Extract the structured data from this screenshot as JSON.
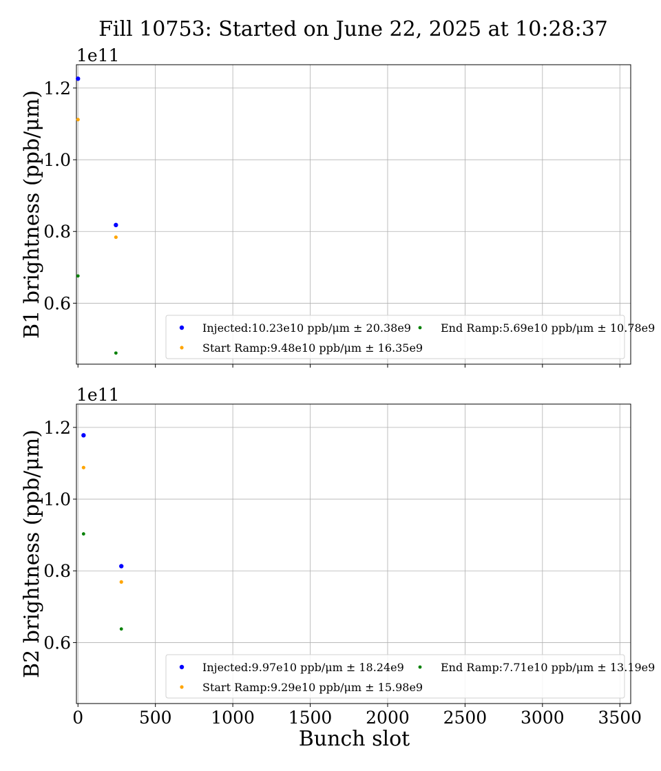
{
  "figure": {
    "title": "Fill 10753: Started on June 22, 2025 at 10:28:37"
  },
  "chart_data": [
    {
      "type": "scatter",
      "ylabel": "B1 brightness (ppb/μm)",
      "y_offset_label": "1e11",
      "xlim": [
        -10,
        3570
      ],
      "ylim": [
        0.43,
        1.265
      ],
      "y_scale": 100000000000.0,
      "grid": true,
      "legend_position": "lower-right",
      "x_ticks": [
        0,
        500,
        1000,
        1500,
        2000,
        2500,
        3000,
        3500
      ],
      "y_ticks": [
        0.6,
        0.8,
        1.0,
        1.2
      ],
      "y_tick_labels": [
        "0.6",
        "0.8",
        "1.0",
        "1.2"
      ],
      "series": [
        {
          "name": "Injected:10.23e10 ppb/μm ± 20.38e9",
          "color": "#0000ff",
          "marker_radius": 3.2,
          "points": [
            [
              0,
              1.226
            ],
            [
              245,
              0.818
            ]
          ]
        },
        {
          "name": "Start Ramp:9.48e10 ppb/μm ± 16.35e9",
          "color": "#ffa500",
          "marker_radius": 2.6,
          "points": [
            [
              0,
              1.112
            ],
            [
              245,
              0.784
            ]
          ]
        },
        {
          "name": "End Ramp:5.69e10 ppb/μm ± 10.78e9",
          "color": "#008000",
          "marker_radius": 2.4,
          "points": [
            [
              0,
              0.676
            ],
            [
              245,
              0.461
            ]
          ]
        }
      ]
    },
    {
      "type": "scatter",
      "xlabel": "Bunch slot",
      "ylabel": "B2 brightness (ppb/μm)",
      "y_offset_label": "1e11",
      "xlim": [
        -10,
        3570
      ],
      "ylim": [
        0.43,
        1.265
      ],
      "y_scale": 100000000000.0,
      "grid": true,
      "legend_position": "lower-right",
      "x_ticks": [
        0,
        500,
        1000,
        1500,
        2000,
        2500,
        3000,
        3500
      ],
      "x_tick_labels": [
        "0",
        "500",
        "1000",
        "1500",
        "2000",
        "2500",
        "3000",
        "3500"
      ],
      "y_ticks": [
        0.6,
        0.8,
        1.0,
        1.2
      ],
      "y_tick_labels": [
        "0.6",
        "0.8",
        "1.0",
        "1.2"
      ],
      "series": [
        {
          "name": "Injected:9.97e10 ppb/μm ± 18.24e9",
          "color": "#0000ff",
          "marker_radius": 3.2,
          "points": [
            [
              36,
              1.178
            ],
            [
              280,
              0.813
            ]
          ]
        },
        {
          "name": "Start Ramp:9.29e10 ppb/μm ± 15.98e9",
          "color": "#ffa500",
          "marker_radius": 2.6,
          "points": [
            [
              36,
              1.088
            ],
            [
              280,
              0.769
            ]
          ]
        },
        {
          "name": "End Ramp:7.71e10 ppb/μm ± 13.19e9",
          "color": "#008000",
          "marker_radius": 2.4,
          "points": [
            [
              36,
              0.903
            ],
            [
              280,
              0.638
            ]
          ]
        }
      ]
    }
  ]
}
